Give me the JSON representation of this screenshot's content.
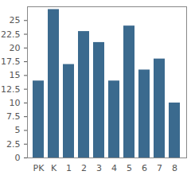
{
  "chart_data": {
    "type": "bar",
    "categories": [
      "PK",
      "K",
      "1",
      "2",
      "3",
      "4",
      "5",
      "6",
      "7",
      "8"
    ],
    "values": [
      14,
      27,
      17,
      23,
      21,
      14,
      24,
      16,
      18,
      10
    ],
    "color": "#3b6a8e",
    "ylim": [
      0,
      27.5
    ],
    "yticks": [
      0,
      2.5,
      5,
      7.5,
      10,
      12.5,
      15,
      17.5,
      20,
      22.5,
      25
    ],
    "grid": false
  }
}
